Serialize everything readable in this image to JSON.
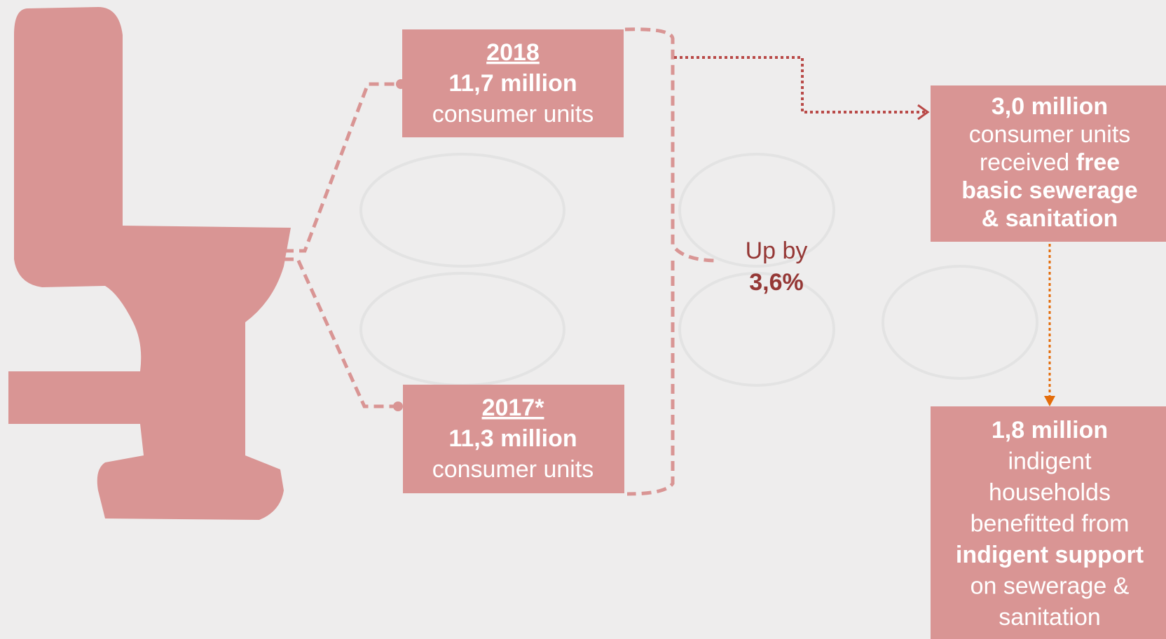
{
  "boxes": [
    {
      "year": "2018",
      "amount": "11,7 million",
      "unit": "consumer units"
    },
    {
      "year": "2017*",
      "amount": "11,3 million",
      "unit": "consumer units"
    }
  ],
  "change": {
    "label": "Up by",
    "value": "3,6%"
  },
  "free_basic": {
    "lines": [
      [
        {
          "text": "3,0 million",
          "bold": true
        }
      ],
      [
        {
          "text": "consumer units",
          "bold": false
        }
      ],
      [
        {
          "text": "received ",
          "bold": false
        },
        {
          "text": "free",
          "bold": true
        }
      ],
      [
        {
          "text": "basic sewerage",
          "bold": true
        }
      ],
      [
        {
          "text": "& sanitation",
          "bold": true
        }
      ]
    ]
  },
  "indigent": {
    "lines": [
      [
        {
          "text": "1,8 million",
          "bold": true
        }
      ],
      [
        {
          "text": "indigent",
          "bold": false
        }
      ],
      [
        {
          "text": "households",
          "bold": false
        }
      ],
      [
        {
          "text": "benefitted from",
          "bold": false
        }
      ],
      [
        {
          "text": "indigent support",
          "bold": true
        }
      ],
      [
        {
          "text": "on sewerage &",
          "bold": false
        }
      ],
      [
        {
          "text": "sanitation",
          "bold": false
        }
      ]
    ]
  }
}
